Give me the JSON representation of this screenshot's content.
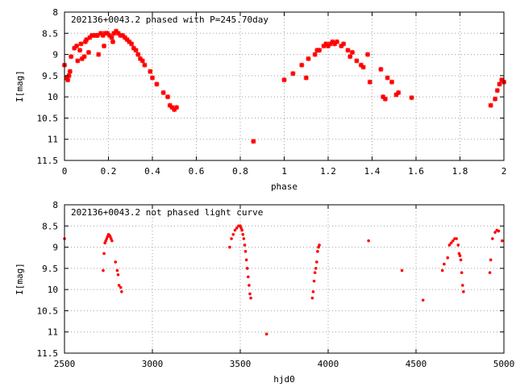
{
  "chart_data": [
    {
      "type": "scatter",
      "title": "202136+0043.2 phased with P=245.70day",
      "xlabel": "phase",
      "ylabel": "I[mag]",
      "xlim": [
        0,
        2
      ],
      "ylim": [
        11.5,
        8
      ],
      "y_inverted": true,
      "grid": true,
      "xticks": [
        0,
        0.2,
        0.4,
        0.6,
        0.8,
        1,
        1.2,
        1.4,
        1.6,
        1.8,
        2
      ],
      "yticks": [
        8,
        8.5,
        9,
        9.5,
        10,
        10.5,
        11,
        11.5
      ],
      "xtick_labels": [
        "0",
        "0.2",
        "0.4",
        "0.6",
        "0.8",
        "1",
        "1.2",
        "1.4",
        "1.6",
        "1.8",
        "2"
      ],
      "ytick_labels": [
        "8",
        "8.5",
        "9",
        "9.5",
        "10",
        "10.5",
        "11",
        "11.5"
      ],
      "marker_color": "#ff0000",
      "marker": "asterisk",
      "points": [
        [
          0.0,
          9.25
        ],
        [
          0.01,
          9.55
        ],
        [
          0.015,
          9.6
        ],
        [
          0.02,
          9.5
        ],
        [
          0.025,
          9.4
        ],
        [
          0.03,
          9.05
        ],
        [
          0.045,
          8.85
        ],
        [
          0.055,
          8.8
        ],
        [
          0.06,
          9.15
        ],
        [
          0.07,
          8.9
        ],
        [
          0.075,
          8.75
        ],
        [
          0.08,
          9.1
        ],
        [
          0.09,
          9.05
        ],
        [
          0.095,
          8.7
        ],
        [
          0.1,
          8.65
        ],
        [
          0.11,
          8.95
        ],
        [
          0.115,
          8.6
        ],
        [
          0.125,
          8.55
        ],
        [
          0.135,
          8.55
        ],
        [
          0.145,
          8.55
        ],
        [
          0.15,
          8.55
        ],
        [
          0.155,
          9.0
        ],
        [
          0.165,
          8.5
        ],
        [
          0.175,
          8.55
        ],
        [
          0.18,
          8.8
        ],
        [
          0.185,
          8.5
        ],
        [
          0.195,
          8.5
        ],
        [
          0.205,
          8.55
        ],
        [
          0.215,
          8.6
        ],
        [
          0.22,
          8.7
        ],
        [
          0.225,
          8.5
        ],
        [
          0.235,
          8.45
        ],
        [
          0.245,
          8.5
        ],
        [
          0.255,
          8.55
        ],
        [
          0.265,
          8.55
        ],
        [
          0.275,
          8.6
        ],
        [
          0.285,
          8.65
        ],
        [
          0.295,
          8.7
        ],
        [
          0.305,
          8.75
        ],
        [
          0.315,
          8.85
        ],
        [
          0.325,
          8.9
        ],
        [
          0.335,
          9.0
        ],
        [
          0.345,
          9.1
        ],
        [
          0.355,
          9.15
        ],
        [
          0.365,
          9.25
        ],
        [
          0.39,
          9.4
        ],
        [
          0.4,
          9.55
        ],
        [
          0.42,
          9.7
        ],
        [
          0.45,
          9.9
        ],
        [
          0.47,
          10.0
        ],
        [
          0.48,
          10.2
        ],
        [
          0.49,
          10.25
        ],
        [
          0.5,
          10.3
        ],
        [
          0.51,
          10.25
        ],
        [
          0.86,
          11.05
        ],
        [
          1.0,
          9.6
        ],
        [
          1.04,
          9.45
        ],
        [
          1.08,
          9.25
        ],
        [
          1.1,
          9.55
        ],
        [
          1.11,
          9.1
        ],
        [
          1.14,
          9.0
        ],
        [
          1.15,
          8.9
        ],
        [
          1.16,
          8.9
        ],
        [
          1.18,
          8.8
        ],
        [
          1.19,
          8.75
        ],
        [
          1.2,
          8.8
        ],
        [
          1.21,
          8.75
        ],
        [
          1.22,
          8.7
        ],
        [
          1.23,
          8.75
        ],
        [
          1.24,
          8.7
        ],
        [
          1.26,
          8.8
        ],
        [
          1.27,
          8.75
        ],
        [
          1.29,
          8.9
        ],
        [
          1.3,
          9.05
        ],
        [
          1.31,
          8.95
        ],
        [
          1.33,
          9.15
        ],
        [
          1.35,
          9.25
        ],
        [
          1.36,
          9.3
        ],
        [
          1.38,
          9.0
        ],
        [
          1.39,
          9.65
        ],
        [
          1.44,
          9.35
        ],
        [
          1.45,
          10.0
        ],
        [
          1.46,
          10.05
        ],
        [
          1.47,
          9.55
        ],
        [
          1.49,
          9.65
        ],
        [
          1.51,
          9.95
        ],
        [
          1.52,
          9.9
        ],
        [
          1.58,
          10.02
        ],
        [
          1.94,
          10.2
        ],
        [
          1.96,
          10.05
        ],
        [
          1.97,
          9.85
        ],
        [
          1.98,
          9.7
        ],
        [
          1.99,
          9.6
        ],
        [
          2.0,
          9.65
        ]
      ]
    },
    {
      "type": "scatter",
      "title": "202136+0043.2 not phased light curve",
      "xlabel": "hjd0",
      "ylabel": "I[mag]",
      "xlim": [
        2500,
        5000
      ],
      "ylim": [
        11.5,
        8
      ],
      "y_inverted": true,
      "grid": true,
      "xticks": [
        2500,
        3000,
        3500,
        4000,
        4500,
        5000
      ],
      "yticks": [
        8,
        8.5,
        9,
        9.5,
        10,
        10.5,
        11,
        11.5
      ],
      "xtick_labels": [
        "2500",
        "3000",
        "3500",
        "4000",
        "4500",
        "5000"
      ],
      "ytick_labels": [
        "8",
        "8.5",
        "9",
        "9.5",
        "10",
        "10.5",
        "11",
        "11.5"
      ],
      "marker_color": "#ff0000",
      "marker": "dot",
      "points": [
        [
          2500,
          8.8
        ],
        [
          2720,
          9.55
        ],
        [
          2725,
          9.15
        ],
        [
          2730,
          8.9
        ],
        [
          2735,
          8.85
        ],
        [
          2740,
          8.8
        ],
        [
          2745,
          8.75
        ],
        [
          2750,
          8.7
        ],
        [
          2755,
          8.72
        ],
        [
          2760,
          8.75
        ],
        [
          2765,
          8.8
        ],
        [
          2770,
          8.85
        ],
        [
          2790,
          9.35
        ],
        [
          2800,
          9.55
        ],
        [
          2805,
          9.65
        ],
        [
          2810,
          9.9
        ],
        [
          2820,
          9.95
        ],
        [
          2825,
          10.05
        ],
        [
          3440,
          9.0
        ],
        [
          3450,
          8.8
        ],
        [
          3460,
          8.7
        ],
        [
          3470,
          8.6
        ],
        [
          3480,
          8.55
        ],
        [
          3490,
          8.5
        ],
        [
          3495,
          8.5
        ],
        [
          3500,
          8.5
        ],
        [
          3505,
          8.55
        ],
        [
          3510,
          8.6
        ],
        [
          3515,
          8.7
        ],
        [
          3520,
          8.8
        ],
        [
          3525,
          8.95
        ],
        [
          3530,
          9.1
        ],
        [
          3535,
          9.3
        ],
        [
          3540,
          9.5
        ],
        [
          3545,
          9.7
        ],
        [
          3550,
          9.9
        ],
        [
          3555,
          10.1
        ],
        [
          3560,
          10.2
        ],
        [
          3650,
          11.05
        ],
        [
          3910,
          10.2
        ],
        [
          3915,
          10.05
        ],
        [
          3920,
          9.8
        ],
        [
          3925,
          9.6
        ],
        [
          3930,
          9.5
        ],
        [
          3935,
          9.35
        ],
        [
          3940,
          9.1
        ],
        [
          3945,
          9.0
        ],
        [
          3950,
          8.95
        ],
        [
          4230,
          8.85
        ],
        [
          4420,
          9.55
        ],
        [
          4540,
          10.25
        ],
        [
          4650,
          9.55
        ],
        [
          4660,
          9.4
        ],
        [
          4680,
          9.25
        ],
        [
          4690,
          8.95
        ],
        [
          4700,
          8.9
        ],
        [
          4710,
          8.85
        ],
        [
          4720,
          8.8
        ],
        [
          4730,
          8.8
        ],
        [
          4740,
          8.95
        ],
        [
          4745,
          9.15
        ],
        [
          4750,
          9.2
        ],
        [
          4755,
          9.3
        ],
        [
          4760,
          9.6
        ],
        [
          4765,
          9.9
        ],
        [
          4770,
          10.05
        ],
        [
          4920,
          9.6
        ],
        [
          4925,
          9.3
        ],
        [
          4935,
          8.8
        ],
        [
          4950,
          8.65
        ],
        [
          4960,
          8.6
        ],
        [
          4970,
          8.62
        ],
        [
          4990,
          8.85
        ]
      ]
    }
  ]
}
